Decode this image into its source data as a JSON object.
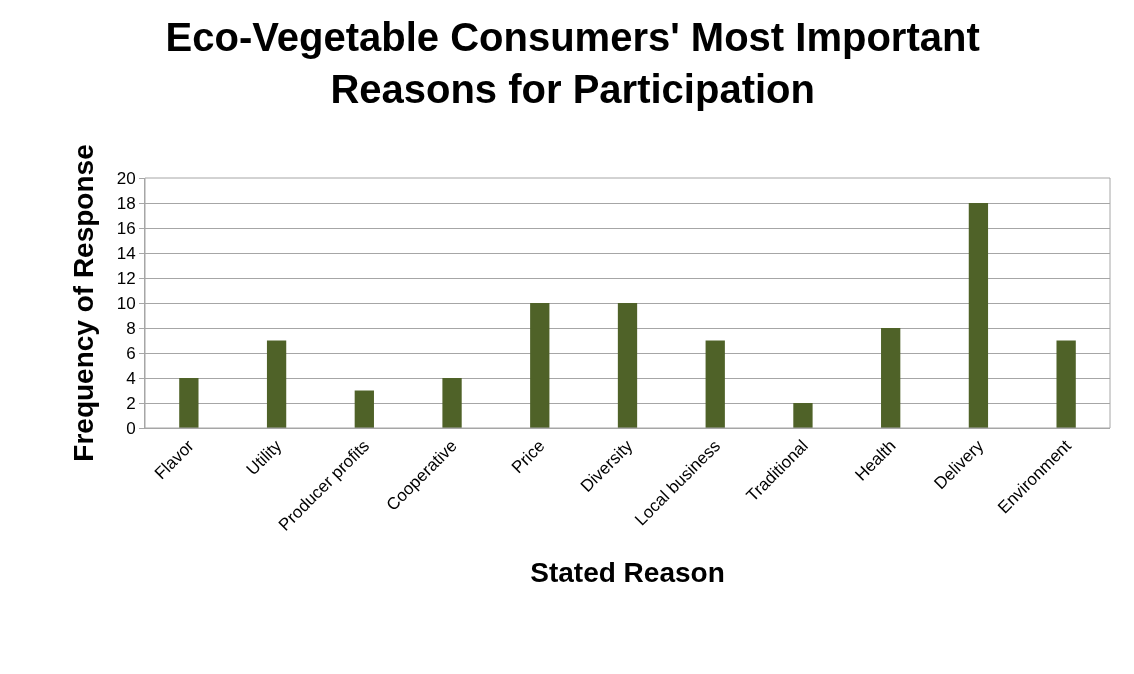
{
  "chart_data": {
    "type": "bar",
    "title": "Eco-Vegetable Consumers' Most Important Reasons for Participation",
    "xlabel": "Stated Reason",
    "ylabel": "Frequency of Response",
    "categories": [
      "Flavor",
      "Utility",
      "Producer profits",
      "Cooperative",
      "Price",
      "Diversity",
      "Local business",
      "Traditional",
      "Health",
      "Delivery",
      "Environment"
    ],
    "values": [
      4,
      7,
      3,
      4,
      10,
      10,
      7,
      2,
      8,
      18,
      7
    ],
    "color": "#4f6228",
    "ylim": [
      0,
      20
    ],
    "yticks": [
      0,
      2,
      4,
      6,
      8,
      10,
      12,
      14,
      16,
      18,
      20
    ],
    "grid": "y"
  }
}
